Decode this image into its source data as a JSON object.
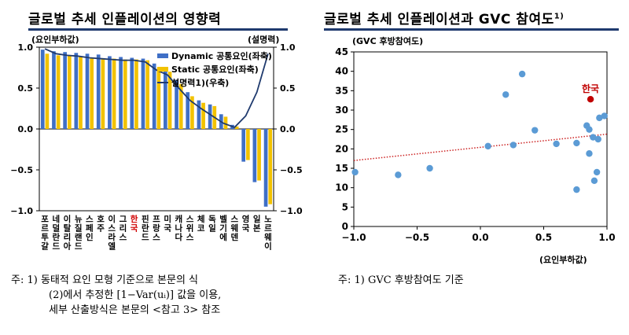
{
  "left": {
    "title": "글로벌 추세 인플레이션의 영향력",
    "left_unit": "(요인부하값)",
    "right_unit": "(설명력)",
    "note_line1": "주: 1) 동태적 요인 모형 기준으로 본문의 식",
    "note_line2": "(2)에서 추정한 [1−Var(uᵢ)] 값을 이용,",
    "note_line3": "세부 산출방식은 본문의 <참고 3> 참조"
  },
  "right": {
    "title": "글로벌 추세 인플레이션과 GVC 참여도",
    "title_sup": "1)",
    "y_unit": "(GVC 후방참여도)",
    "x_unit": "(요인부하값)",
    "note": "주: 1) GVC 후방참여도 기준"
  },
  "chart_data": [
    {
      "type": "bar",
      "categories": [
        "포르투갈",
        "네덜란드",
        "이탈리아",
        "뉴질랜드",
        "스페인",
        "호주",
        "이스라엘",
        "그리스",
        "한국",
        "핀란드",
        "프랑스",
        "미국",
        "캐나다",
        "스위스",
        "체코",
        "독일",
        "벨기에",
        "스웨덴",
        "영국",
        "일본",
        "노르웨이"
      ],
      "highlight_category": "한국",
      "series": [
        {
          "name": "Dynamic 공통요인(좌축)",
          "color": "#3f6fc6",
          "values": [
            0.97,
            0.95,
            0.94,
            0.93,
            0.92,
            0.91,
            0.89,
            0.88,
            0.87,
            0.86,
            0.8,
            0.75,
            0.6,
            0.45,
            0.35,
            0.3,
            0.18,
            0.05,
            -0.4,
            -0.65,
            -0.95
          ]
        },
        {
          "name": "Static 공통요인(좌축)",
          "color": "#f2c200",
          "values": [
            0.92,
            0.9,
            0.9,
            0.88,
            0.87,
            0.86,
            0.86,
            0.85,
            0.85,
            0.84,
            0.74,
            0.7,
            0.55,
            0.4,
            0.32,
            0.28,
            0.15,
            0.03,
            -0.38,
            -0.63,
            -0.92
          ]
        },
        {
          "name": "설명력1)(우축)",
          "color": "#1f3a6e",
          "type": "line",
          "values": [
            0.98,
            0.92,
            0.9,
            0.89,
            0.87,
            0.86,
            0.85,
            0.84,
            0.84,
            0.82,
            0.72,
            0.66,
            0.5,
            0.35,
            0.25,
            0.16,
            0.07,
            0.02,
            0.16,
            0.45,
            0.92
          ]
        }
      ],
      "ylim_left": [
        -1.0,
        1.0
      ],
      "ylim_right": [
        -1.0,
        1.0
      ],
      "yticks_left": [
        "1.0",
        "0.5",
        "0.0",
        "−0.5",
        "−1.0"
      ],
      "yticks_right": [
        "1.0",
        "0.5",
        "0.0",
        "−0.5",
        "−1.0"
      ],
      "legend_position": "top-right",
      "grid": false
    },
    {
      "type": "scatter",
      "xlim": [
        -1.0,
        1.0
      ],
      "ylim": [
        0,
        45
      ],
      "xticks": [
        "−1.0",
        "−0.5",
        "0.0",
        "0.5",
        "1.0"
      ],
      "yticks": [
        "0",
        "5",
        "10",
        "15",
        "20",
        "25",
        "30",
        "35",
        "40",
        "45"
      ],
      "points": [
        {
          "x": -0.99,
          "y": 14.0
        },
        {
          "x": -0.65,
          "y": 13.3
        },
        {
          "x": -0.4,
          "y": 15.0
        },
        {
          "x": 0.06,
          "y": 20.7
        },
        {
          "x": 0.2,
          "y": 34.0
        },
        {
          "x": 0.26,
          "y": 21.0
        },
        {
          "x": 0.33,
          "y": 39.3
        },
        {
          "x": 0.43,
          "y": 24.8
        },
        {
          "x": 0.6,
          "y": 21.3
        },
        {
          "x": 0.76,
          "y": 21.5
        },
        {
          "x": 0.76,
          "y": 9.5
        },
        {
          "x": 0.84,
          "y": 26.0
        },
        {
          "x": 0.86,
          "y": 25.0
        },
        {
          "x": 0.86,
          "y": 18.8
        },
        {
          "x": 0.89,
          "y": 23.0
        },
        {
          "x": 0.9,
          "y": 11.8
        },
        {
          "x": 0.92,
          "y": 14.0
        },
        {
          "x": 0.93,
          "y": 22.5
        },
        {
          "x": 0.94,
          "y": 28.0
        },
        {
          "x": 0.98,
          "y": 28.5
        },
        {
          "x": 0.87,
          "y": 32.8,
          "label": "한국",
          "highlight": true
        }
      ],
      "trendline": {
        "x": [
          -1.0,
          1.0
        ],
        "y": [
          17.0,
          23.8
        ],
        "color": "#cc2222",
        "style": "dotted"
      },
      "point_color": "#5b9bd5",
      "highlight_color": "#c00000",
      "grid": false
    }
  ]
}
